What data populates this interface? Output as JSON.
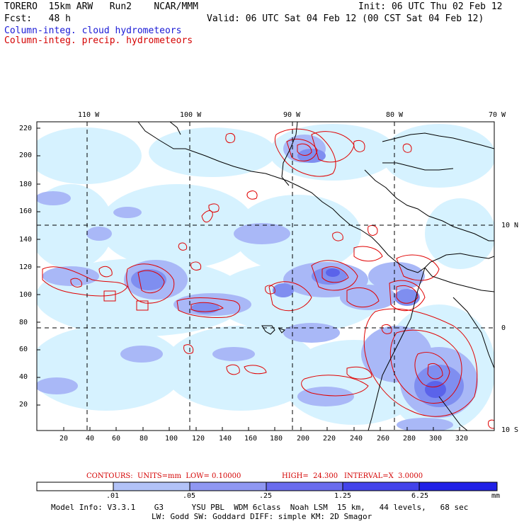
{
  "header": {
    "title_left": "TORERO  15km ARW   Run2    NCAR/MMM",
    "init": "Init: 06 UTC Thu 02 Feb 12",
    "fcst": "Fcst:   48 h",
    "valid": "Valid: 06 UTC Sat 04 Feb 12 (00 CST Sat 04 Feb 12)",
    "legend_cloud": "Column-integ. cloud hydrometeors",
    "legend_precip": "Column-integ. precip. hydrometeors"
  },
  "map": {
    "lon_labels": [
      "110 W",
      "100 W",
      "90 W",
      "80 W",
      "70 W"
    ],
    "lat_labels": [
      "10 N",
      "0",
      "10 S"
    ],
    "y_ticks": [
      "220",
      "200",
      "180",
      "160",
      "140",
      "120",
      "100",
      "80",
      "60",
      "40",
      "20"
    ],
    "x_ticks": [
      "20",
      "40",
      "60",
      "80",
      "100",
      "120",
      "140",
      "160",
      "180",
      "200",
      "220",
      "240",
      "260",
      "280",
      "300",
      "320"
    ],
    "colors": {
      "level1": "#d6f2ff",
      "level2": "#a9b8f7",
      "level3": "#7f8ef0",
      "level4": "#5b63ea",
      "contour": "#e00000",
      "coast": "#000000"
    }
  },
  "contour_info": {
    "units": "CONTOURS:  UNITS=mm  LOW= 0.10000",
    "high": "HIGH=  24.300",
    "interval": "INTERVAL=X  3.0000"
  },
  "colorbar": {
    "labels": [
      ".01",
      ".05",
      ".25",
      "1.25",
      "6.25"
    ],
    "unit": "mm",
    "colors": [
      "#ffffff",
      "#d6f2ff",
      "#b2c2f7",
      "#8f97f2",
      "#6a6cee",
      "#4343ea",
      "#2020e6"
    ]
  },
  "model_info": {
    "line1": "Model Info: V3.3.1    G3      YSU PBL  WDM 6class  Noah LSM  15 km,   44 levels,   68 sec",
    "line2": "LW: Godd SW: Goddard DIFF: simple KM: 2D Smagor"
  }
}
